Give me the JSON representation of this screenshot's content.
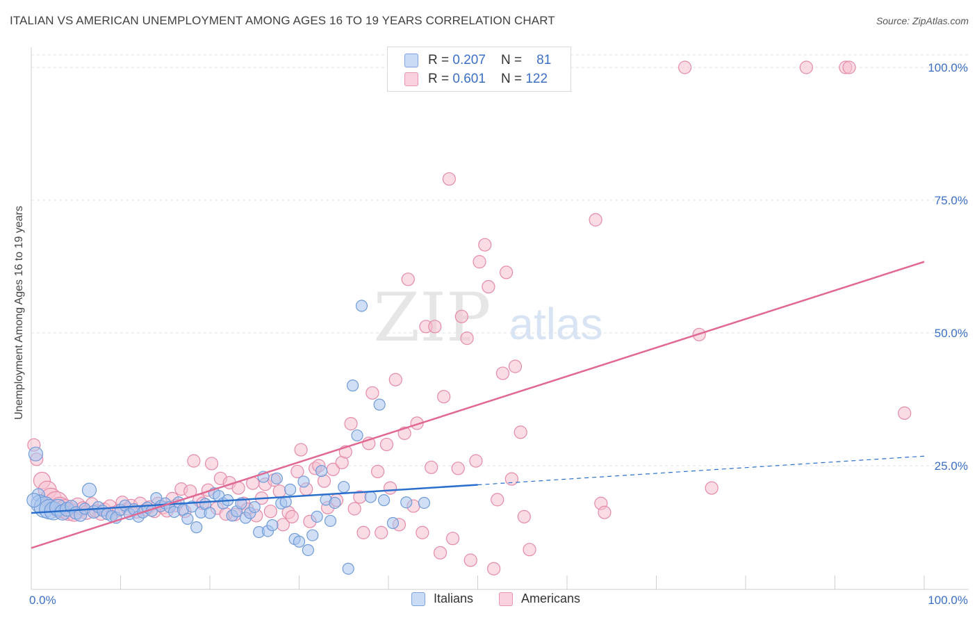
{
  "title": "ITALIAN VS AMERICAN UNEMPLOYMENT AMONG AGES 16 TO 19 YEARS CORRELATION CHART",
  "source": "Source: ZipAtlas.com",
  "watermark": {
    "zip": "ZIP",
    "atlas": "atlas"
  },
  "legend": {
    "rows": [
      {
        "r_label": "R =",
        "r_value": "0.207",
        "n_label": "N =",
        "n_value": "81",
        "color": "#a9c4ec",
        "border": "#7fa4dc"
      },
      {
        "r_label": "R =",
        "r_value": "0.601",
        "n_label": "N =",
        "n_value": "122",
        "color": "#f6bfd0",
        "border": "#e994b0"
      }
    ]
  },
  "bottom_legend": {
    "italians": "Italians",
    "americans": "Americans"
  },
  "colors": {
    "italians_fill": "#a9c4ec",
    "italians_stroke": "#6f9bd8",
    "italians_line": "#2a6fcb",
    "americans_fill": "#f6bfd0",
    "americans_stroke": "#e48aa8",
    "americans_line": "#e06892",
    "axis_text": "#3b6fc4",
    "grid": "#e2e2e2"
  },
  "chart_data": {
    "type": "scatter",
    "xlabel": "",
    "ylabel": "Unemployment Among Ages 16 to 19 years",
    "xlim": [
      0,
      100
    ],
    "ylim": [
      0,
      105
    ],
    "x_tick_labels": [
      "0.0%",
      "100.0%"
    ],
    "y_ticks": [
      25,
      50,
      75,
      100
    ],
    "y_tick_labels": [
      "25.0%",
      "50.0%",
      "75.0%",
      "100.0%"
    ],
    "grid": true,
    "series": [
      {
        "name": "Italians",
        "trend": {
          "x0": 0,
          "y0": 16.1,
          "x1": 50,
          "y1": 21.4,
          "dashed_to_x": 100,
          "dashed_to_y": 26.8
        },
        "points": [
          [
            0.5,
            27.2
          ],
          [
            0.8,
            19.5
          ],
          [
            1,
            17.8
          ],
          [
            1.5,
            17.2
          ],
          [
            2,
            16.8
          ],
          [
            2.5,
            16.5
          ],
          [
            3,
            17.1
          ],
          [
            3.5,
            16.2
          ],
          [
            4,
            16.8
          ],
          [
            4.5,
            17.3
          ],
          [
            5,
            16.1
          ],
          [
            5.5,
            15.7
          ],
          [
            6,
            16.9
          ],
          [
            6.5,
            20.4
          ],
          [
            7,
            16.3
          ],
          [
            7.5,
            17.2
          ],
          [
            8,
            16.5
          ],
          [
            8.5,
            15.9
          ],
          [
            9,
            15.5
          ],
          [
            9.5,
            15.2
          ],
          [
            10,
            16.7
          ],
          [
            10.5,
            17.5
          ],
          [
            11,
            15.9
          ],
          [
            11.5,
            16.8
          ],
          [
            12,
            15.4
          ],
          [
            12.5,
            16.2
          ],
          [
            13,
            17.1
          ],
          [
            13.5,
            16.5
          ],
          [
            14,
            18.9
          ],
          [
            14.5,
            17.4
          ],
          [
            15,
            17.9
          ],
          [
            15.5,
            17.2
          ],
          [
            16,
            16.3
          ],
          [
            16.5,
            18.1
          ],
          [
            17,
            16.7
          ],
          [
            17.5,
            15.0
          ],
          [
            18,
            17.3
          ],
          [
            18.5,
            13.4
          ],
          [
            19,
            16.2
          ],
          [
            19.5,
            17.8
          ],
          [
            20,
            16.1
          ],
          [
            20.5,
            19.8
          ],
          [
            21,
            19.3
          ],
          [
            21.5,
            17.9
          ],
          [
            22,
            18.5
          ],
          [
            22.5,
            15.6
          ],
          [
            23,
            16.4
          ],
          [
            23.5,
            17.9
          ],
          [
            24,
            15.2
          ],
          [
            24.5,
            16.1
          ],
          [
            25,
            17.2
          ],
          [
            25.5,
            12.5
          ],
          [
            26,
            22.9
          ],
          [
            26.5,
            12.7
          ],
          [
            27,
            13.8
          ],
          [
            27.5,
            22.6
          ],
          [
            28,
            17.9
          ],
          [
            28.5,
            18.2
          ],
          [
            29,
            20.5
          ],
          [
            29.5,
            11.2
          ],
          [
            30,
            10.7
          ],
          [
            30.5,
            22.0
          ],
          [
            31,
            9.1
          ],
          [
            31.5,
            11.9
          ],
          [
            32,
            15.4
          ],
          [
            32.5,
            24.0
          ],
          [
            33,
            18.6
          ],
          [
            33.5,
            14.6
          ],
          [
            34,
            18.0
          ],
          [
            35,
            21.0
          ],
          [
            35.5,
            5.6
          ],
          [
            36,
            40.1
          ],
          [
            36.5,
            30.7
          ],
          [
            37,
            55.1
          ],
          [
            38,
            19.1
          ],
          [
            39,
            36.5
          ],
          [
            39.5,
            18.5
          ],
          [
            40.5,
            14.2
          ],
          [
            42,
            18.1
          ],
          [
            44,
            18.0
          ],
          [
            0.3,
            18.5
          ]
        ],
        "sizes": [
          16,
          14,
          22,
          26,
          24,
          22,
          20,
          18,
          16,
          14,
          14,
          14,
          12,
          16,
          14,
          12,
          12,
          12,
          12,
          12,
          12,
          12,
          12,
          12,
          12,
          12,
          12,
          12,
          12,
          12,
          12,
          12,
          12,
          12,
          12,
          12,
          12,
          12,
          12,
          12,
          12,
          12,
          12,
          12,
          12,
          12,
          12,
          12,
          12,
          12,
          12,
          12,
          12,
          12,
          12,
          12,
          12,
          12,
          12,
          12,
          12,
          12,
          12,
          12,
          12,
          12,
          12,
          12,
          12,
          12,
          12,
          12,
          12,
          12,
          12,
          12,
          12,
          12,
          12,
          12,
          16
        ]
      },
      {
        "name": "Americans",
        "trend": {
          "x0": 0,
          "y0": 9.5,
          "x1": 100,
          "y1": 63.4
        },
        "points": [
          [
            0.3,
            28.9
          ],
          [
            0.6,
            26.2
          ],
          [
            1.2,
            22.2
          ],
          [
            1.8,
            20.4
          ],
          [
            2.2,
            18.8
          ],
          [
            2.8,
            17.9
          ],
          [
            3.2,
            17.1
          ],
          [
            3.8,
            16.8
          ],
          [
            4.2,
            16.4
          ],
          [
            4.8,
            16.1
          ],
          [
            5.2,
            17.5
          ],
          [
            5.8,
            16.9
          ],
          [
            6.2,
            16.2
          ],
          [
            6.8,
            17.8
          ],
          [
            7.2,
            16.5
          ],
          [
            7.8,
            15.9
          ],
          [
            8.2,
            16.8
          ],
          [
            8.8,
            17.4
          ],
          [
            9.2,
            16.1
          ],
          [
            9.8,
            16.6
          ],
          [
            10.2,
            18.1
          ],
          [
            10.8,
            16.9
          ],
          [
            11.2,
            17.5
          ],
          [
            11.8,
            16.3
          ],
          [
            12.2,
            17.9
          ],
          [
            12.8,
            16.7
          ],
          [
            13.2,
            17.2
          ],
          [
            13.8,
            16.4
          ],
          [
            14.2,
            17.9
          ],
          [
            14.8,
            17.1
          ],
          [
            15.2,
            16.5
          ],
          [
            15.8,
            18.8
          ],
          [
            16.2,
            17.5
          ],
          [
            16.8,
            20.6
          ],
          [
            17.2,
            16.4
          ],
          [
            17.8,
            20.2
          ],
          [
            18.2,
            25.9
          ],
          [
            18.8,
            18.5
          ],
          [
            19.2,
            17.9
          ],
          [
            19.8,
            20.4
          ],
          [
            20.2,
            25.4
          ],
          [
            20.8,
            17.0
          ],
          [
            21.2,
            22.6
          ],
          [
            21.8,
            15.9
          ],
          [
            22.2,
            21.8
          ],
          [
            22.8,
            15.8
          ],
          [
            23.2,
            20.8
          ],
          [
            23.8,
            17.9
          ],
          [
            24.2,
            16.8
          ],
          [
            24.8,
            21.7
          ],
          [
            25.2,
            15.6
          ],
          [
            25.8,
            18.9
          ],
          [
            26.2,
            21.5
          ],
          [
            26.8,
            16.4
          ],
          [
            27.2,
            22.3
          ],
          [
            27.8,
            20.2
          ],
          [
            28.2,
            13.9
          ],
          [
            28.8,
            16.2
          ],
          [
            29.2,
            15.4
          ],
          [
            29.8,
            23.9
          ],
          [
            30.2,
            28.0
          ],
          [
            30.8,
            20.6
          ],
          [
            31.2,
            14.5
          ],
          [
            31.8,
            24.5
          ],
          [
            32.2,
            25.0
          ],
          [
            32.8,
            22.1
          ],
          [
            33.2,
            17.1
          ],
          [
            33.8,
            24.3
          ],
          [
            34.2,
            18.5
          ],
          [
            34.8,
            25.6
          ],
          [
            35.2,
            27.6
          ],
          [
            35.8,
            32.9
          ],
          [
            36.2,
            16.9
          ],
          [
            36.8,
            19.1
          ],
          [
            37.2,
            12.4
          ],
          [
            37.8,
            29.2
          ],
          [
            38.2,
            38.7
          ],
          [
            38.8,
            23.9
          ],
          [
            39.2,
            12.4
          ],
          [
            39.8,
            29.0
          ],
          [
            40.2,
            20.8
          ],
          [
            40.8,
            41.2
          ],
          [
            41.2,
            13.9
          ],
          [
            41.8,
            31.1
          ],
          [
            42.2,
            60.1
          ],
          [
            42.8,
            17.4
          ],
          [
            43.2,
            33.0
          ],
          [
            43.8,
            12.4
          ],
          [
            44.2,
            51.2
          ],
          [
            44.8,
            24.7
          ],
          [
            45.2,
            51.2
          ],
          [
            45.8,
            8.6
          ],
          [
            46.2,
            38.0
          ],
          [
            46.8,
            79.0
          ],
          [
            47.2,
            11.3
          ],
          [
            47.8,
            24.5
          ],
          [
            48.2,
            53.1
          ],
          [
            48.8,
            49.0
          ],
          [
            49.2,
            7.2
          ],
          [
            49.8,
            25.9
          ],
          [
            50.2,
            63.4
          ],
          [
            50.8,
            66.6
          ],
          [
            51.2,
            58.7
          ],
          [
            51.8,
            5.6
          ],
          [
            52.2,
            18.6
          ],
          [
            52.8,
            42.4
          ],
          [
            53.2,
            61.4
          ],
          [
            53.8,
            22.5
          ],
          [
            54.2,
            43.7
          ],
          [
            54.8,
            31.3
          ],
          [
            55.2,
            15.4
          ],
          [
            55.8,
            9.2
          ],
          [
            63.2,
            71.3
          ],
          [
            63.8,
            17.9
          ],
          [
            64.2,
            16.2
          ],
          [
            74.8,
            49.7
          ],
          [
            76.2,
            20.8
          ],
          [
            73.2,
            100
          ],
          [
            86.8,
            100
          ],
          [
            91.2,
            100
          ],
          [
            91.6,
            100
          ],
          [
            97.8,
            34.9
          ]
        ],
        "sizes": [
          14,
          14,
          20,
          22,
          26,
          30,
          26,
          24,
          22,
          20,
          18,
          16,
          16,
          14,
          14,
          14,
          14,
          14,
          14,
          14,
          14,
          14,
          14,
          14,
          14,
          14,
          14,
          14,
          14,
          14,
          14,
          14,
          14,
          14,
          14,
          14,
          14,
          14,
          14,
          14,
          14,
          14,
          14,
          14,
          14,
          14,
          14,
          14,
          14,
          14,
          14,
          14,
          14,
          14,
          14,
          14,
          14,
          14,
          14,
          14,
          14,
          14,
          14,
          14,
          14,
          14,
          14,
          14,
          14,
          14,
          14,
          14,
          14,
          14,
          14,
          14,
          14,
          14,
          14,
          14,
          14,
          14,
          14,
          14,
          14,
          14,
          14,
          14,
          14,
          14,
          14,
          14,
          14,
          14,
          14,
          14,
          14,
          14,
          14,
          14,
          14,
          14,
          14,
          14,
          14,
          14,
          14,
          14,
          14,
          14,
          14,
          14,
          14,
          14,
          14,
          14,
          14,
          14,
          14,
          14,
          14,
          14
        ]
      }
    ]
  }
}
